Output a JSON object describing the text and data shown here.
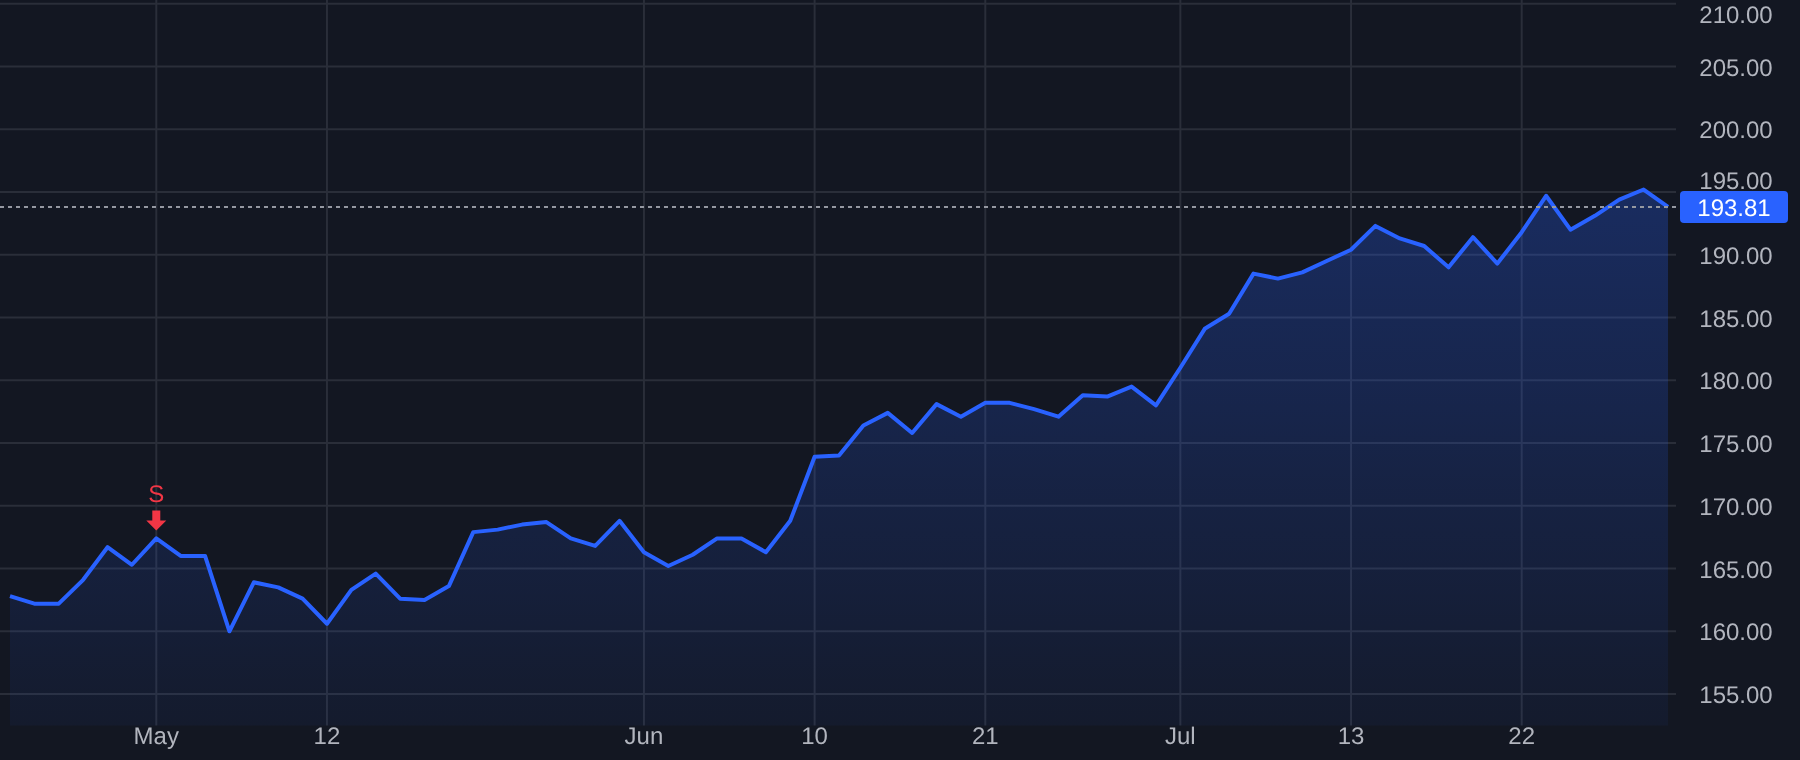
{
  "chart_data": {
    "type": "area",
    "categories": [
      null,
      null,
      null,
      null,
      null,
      null,
      "May",
      null,
      null,
      null,
      null,
      null,
      null,
      "12",
      null,
      null,
      null,
      null,
      null,
      null,
      null,
      null,
      null,
      null,
      null,
      null,
      "Jun",
      null,
      null,
      null,
      null,
      null,
      null,
      "10",
      null,
      null,
      null,
      null,
      null,
      null,
      "21",
      null,
      null,
      null,
      null,
      null,
      null,
      null,
      "Jul",
      null,
      null,
      null,
      null,
      null,
      null,
      "13",
      null,
      null,
      null,
      null,
      null,
      null,
      "22",
      null,
      null,
      null,
      null,
      null,
      null
    ],
    "series": [
      {
        "color": "#2962ff",
        "values": [
          162.8,
          162.2,
          162.2,
          164.1,
          166.7,
          165.3,
          167.4,
          166.0,
          166.0,
          160.0,
          163.9,
          163.5,
          162.6,
          160.6,
          163.3,
          164.6,
          162.6,
          162.5,
          163.6,
          167.9,
          168.1,
          168.5,
          168.7,
          167.4,
          166.8,
          168.8,
          166.3,
          165.2,
          166.1,
          167.4,
          167.4,
          166.3,
          168.8,
          173.9,
          174.0,
          176.4,
          177.4,
          175.8,
          178.1,
          177.1,
          178.2,
          178.2,
          177.7,
          177.1,
          178.8,
          178.7,
          179.5,
          178.0,
          181.0,
          184.1,
          185.3,
          188.5,
          188.1,
          188.6,
          189.5,
          190.4,
          192.3,
          191.3,
          190.7,
          189.0,
          191.4,
          189.3,
          191.8,
          194.7,
          192.0,
          193.1,
          194.4,
          195.2,
          193.81
        ]
      }
    ],
    "ylim": [
      152.5,
      210.3
    ],
    "yticks": [
      {
        "value": 155,
        "label": "155.00"
      },
      {
        "value": 160,
        "label": "160.00"
      },
      {
        "value": 165,
        "label": "165.00"
      },
      {
        "value": 170,
        "label": "170.00"
      },
      {
        "value": 175,
        "label": "175.00"
      },
      {
        "value": 180,
        "label": "180.00"
      },
      {
        "value": 185,
        "label": "185.00"
      },
      {
        "value": 190,
        "label": "190.00"
      },
      {
        "value": 195,
        "label": "195.00"
      },
      {
        "value": 200,
        "label": "200.00"
      },
      {
        "value": 205,
        "label": "205.00"
      },
      {
        "value": 210,
        "label": "210.00"
      }
    ],
    "grid": true,
    "ref_lines": [
      {
        "axis": "y",
        "value": 193.81,
        "label": "193.81",
        "color": "#9598a1",
        "line_style": "dotted"
      }
    ],
    "annotations": [
      {
        "text": "S",
        "x": "May",
        "y": 167.4
      }
    ]
  }
}
